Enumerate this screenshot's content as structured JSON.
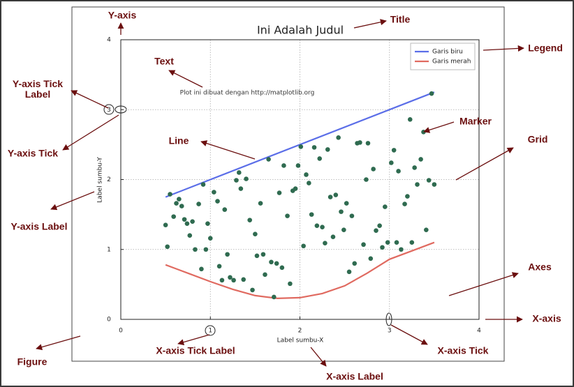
{
  "chart_data": {
    "type": "line",
    "title": "Ini Adalah Judul",
    "xlabel": "Label sumbu-X",
    "ylabel": "Label sumbu-Y",
    "xlim": [
      0,
      4
    ],
    "ylim": [
      0,
      4
    ],
    "xticks": [
      0,
      1,
      2,
      3,
      4
    ],
    "yticks": [
      0,
      1,
      2,
      3,
      4
    ],
    "grid": true,
    "legend": "upper right",
    "text": {
      "x": 0.66,
      "y": 3.24,
      "text": "Plot ini dibuat dengan http://matplotlib.org"
    },
    "series": [
      {
        "type": "line",
        "name": "Garis biru",
        "color": "#5b6ee8",
        "x": [
          0.5,
          3.5
        ],
        "values": [
          1.75,
          3.25
        ]
      },
      {
        "type": "line",
        "name": "Garis merah",
        "color": "#e06a60",
        "x": [
          0.5,
          0.75,
          1.0,
          1.25,
          1.5,
          1.75,
          2.0,
          2.25,
          2.5,
          2.75,
          3.0,
          3.25,
          3.5
        ],
        "values": [
          0.78,
          0.66,
          0.54,
          0.43,
          0.34,
          0.3,
          0.31,
          0.37,
          0.48,
          0.66,
          0.86,
          0.98,
          1.1
        ]
      },
      {
        "type": "scatter",
        "color": "#2f6b50",
        "x": [
          0.5,
          0.52,
          0.55,
          0.59,
          0.62,
          0.65,
          0.68,
          0.71,
          0.74,
          0.77,
          0.8,
          0.83,
          0.87,
          0.9,
          0.92,
          0.95,
          0.97,
          1.0,
          1.04,
          1.08,
          1.1,
          1.13,
          1.16,
          1.19,
          1.22,
          1.26,
          1.29,
          1.32,
          1.34,
          1.37,
          1.4,
          1.44,
          1.47,
          1.5,
          1.52,
          1.56,
          1.59,
          1.61,
          1.65,
          1.68,
          1.71,
          1.74,
          1.77,
          1.8,
          1.82,
          1.86,
          1.89,
          1.92,
          1.95,
          1.98,
          2.01,
          2.04,
          2.07,
          2.1,
          2.13,
          2.16,
          2.19,
          2.22,
          2.25,
          2.28,
          2.31,
          2.34,
          2.37,
          2.4,
          2.43,
          2.46,
          2.49,
          2.52,
          2.55,
          2.58,
          2.61,
          2.64,
          2.67,
          2.71,
          2.74,
          2.76,
          2.79,
          2.82,
          2.85,
          2.89,
          2.92,
          2.95,
          2.98,
          3.02,
          3.05,
          3.08,
          3.1,
          3.13,
          3.17,
          3.2,
          3.23,
          3.25,
          3.28,
          3.31,
          3.35,
          3.38,
          3.41,
          3.44,
          3.47,
          3.5
        ],
        "values": [
          1.35,
          1.04,
          1.79,
          1.47,
          1.66,
          1.72,
          1.62,
          1.43,
          1.37,
          1.2,
          1.4,
          1.0,
          1.65,
          0.72,
          1.93,
          1.0,
          1.37,
          1.16,
          1.82,
          1.69,
          0.76,
          0.56,
          1.57,
          0.93,
          0.6,
          0.56,
          1.99,
          2.1,
          1.87,
          0.57,
          2.01,
          1.42,
          0.42,
          1.22,
          0.91,
          1.66,
          0.93,
          0.64,
          2.29,
          0.82,
          0.32,
          0.8,
          1.81,
          0.74,
          2.2,
          1.48,
          0.51,
          1.84,
          1.87,
          2.2,
          2.47,
          1.05,
          2.07,
          1.95,
          1.5,
          2.46,
          1.34,
          2.3,
          1.32,
          1.09,
          2.43,
          1.75,
          1.18,
          1.78,
          2.6,
          1.54,
          1.28,
          1.66,
          0.68,
          1.48,
          0.8,
          2.52,
          2.53,
          1.07,
          2.0,
          2.52,
          0.87,
          2.15,
          1.27,
          1.34,
          1.03,
          1.61,
          1.1,
          2.24,
          2.42,
          1.1,
          2.12,
          1.0,
          1.65,
          1.76,
          2.86,
          1.1,
          2.17,
          1.93,
          2.29,
          2.68,
          1.28,
          1.99,
          3.23,
          1.93
        ]
      }
    ],
    "annotations": [
      "Title",
      "Legend",
      "Marker",
      "Grid",
      "Axes",
      "X-axis",
      "X-axis Tick",
      "X-axis Label",
      "X-axis Tick Label",
      "Figure",
      "Y-axis Label",
      "Y-axis Tick",
      "Y-axis Tick Label",
      "Y-axis",
      "Text",
      "Line"
    ]
  }
}
